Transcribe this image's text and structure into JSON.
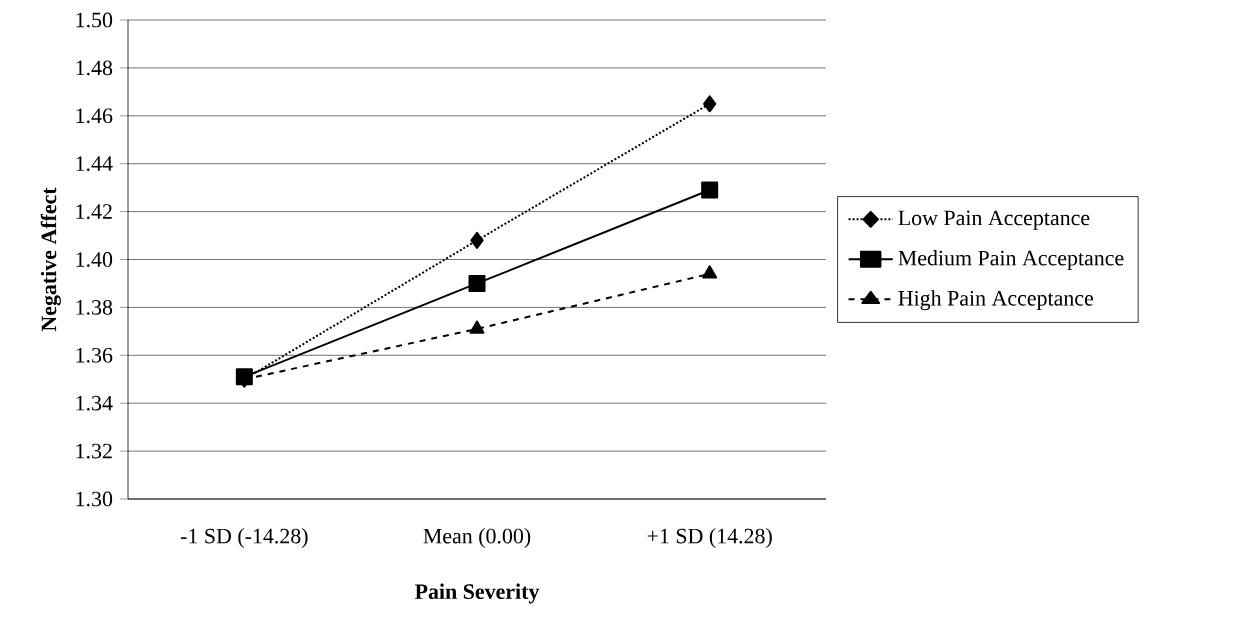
{
  "chart_data": {
    "type": "line",
    "xlabel": "Pain Severity",
    "ylabel": "Negative Affect",
    "categories": [
      "-1 SD (-14.28)",
      "Mean (0.00)",
      "+1 SD (14.28)"
    ],
    "series": [
      {
        "name": "Low Pain Acceptance",
        "color": "#000000",
        "values": [
          1.35,
          1.408,
          1.465
        ],
        "marker": "diamond",
        "line_style": "dotted"
      },
      {
        "name": "Medium Pain Acceptance",
        "color": "#000000",
        "values": [
          1.351,
          1.39,
          1.429
        ],
        "marker": "square",
        "line_style": "solid"
      },
      {
        "name": "High Pain Acceptance",
        "color": "#000000",
        "values": [
          1.35,
          1.371,
          1.394
        ],
        "marker": "triangle",
        "line_style": "dashed"
      }
    ],
    "ylim": [
      1.3,
      1.5
    ],
    "yticks": [
      {
        "value": 1.3,
        "label": "1.30"
      },
      {
        "value": 1.32,
        "label": "1.32"
      },
      {
        "value": 1.34,
        "label": "1.34"
      },
      {
        "value": 1.36,
        "label": "1.36"
      },
      {
        "value": 1.38,
        "label": "1.38"
      },
      {
        "value": 1.4,
        "label": "1.40"
      },
      {
        "value": 1.42,
        "label": "1.42"
      },
      {
        "value": 1.44,
        "label": "1.44"
      },
      {
        "value": 1.46,
        "label": "1.46"
      },
      {
        "value": 1.48,
        "label": "1.48"
      },
      {
        "value": 1.5,
        "label": "1.50"
      }
    ],
    "grid": "y",
    "legend": "right"
  }
}
